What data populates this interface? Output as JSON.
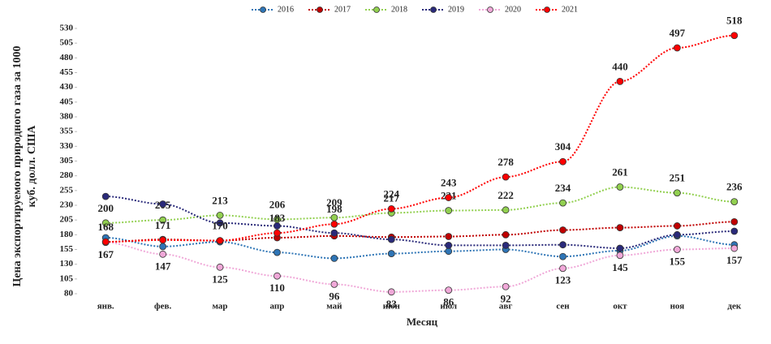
{
  "chart_data": {
    "type": "line",
    "x_label": "Месяц",
    "y_label": [
      "Цена экспортируемого природного газа за 1000",
      "куб. долл. США"
    ],
    "categories": [
      "янв.",
      "фев.",
      "мар",
      "апр",
      "май",
      "июн",
      "июл",
      "авг",
      "сен",
      "окт",
      "ноя",
      "дек"
    ],
    "ylim": [
      80,
      530
    ],
    "yticks": [
      80,
      105,
      130,
      155,
      180,
      205,
      230,
      255,
      280,
      305,
      330,
      355,
      380,
      405,
      430,
      455,
      480,
      505,
      530
    ],
    "legend": "top",
    "series": [
      {
        "name": "2016",
        "color": "#2e75b6",
        "values": [
          175,
          160,
          168,
          150,
          140,
          148,
          152,
          155,
          143,
          153,
          178,
          163
        ]
      },
      {
        "name": "2017",
        "color": "#c00000",
        "values": [
          168,
          172,
          170,
          175,
          178,
          176,
          177,
          180,
          188,
          192,
          195,
          202
        ]
      },
      {
        "name": "2018",
        "color": "#92d050",
        "values": [
          200,
          205,
          213,
          206,
          209,
          217,
          221,
          222,
          234,
          261,
          251,
          236
        ],
        "data_labels": "above"
      },
      {
        "name": "2019",
        "color": "#2a2a7a",
        "values": [
          245,
          232,
          200,
          195,
          183,
          172,
          162,
          162,
          163,
          157,
          180,
          186
        ]
      },
      {
        "name": "2020",
        "color": "#f0a8d8",
        "values": [
          167,
          147,
          125,
          110,
          96,
          83,
          86,
          92,
          123,
          145,
          155,
          157
        ],
        "data_labels": "below"
      },
      {
        "name": "2021",
        "color": "#ff0000",
        "values": [
          168,
          171,
          170,
          183,
          198,
          224,
          243,
          278,
          304,
          440,
          497,
          518
        ],
        "data_labels": "above"
      }
    ]
  }
}
